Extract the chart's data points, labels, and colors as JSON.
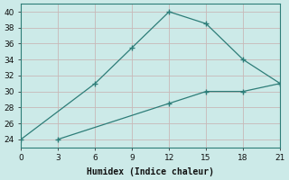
{
  "line1_x": [
    0,
    6,
    9,
    12,
    15,
    18,
    21
  ],
  "line1_y": [
    24,
    31,
    35.5,
    40,
    38.5,
    34,
    31
  ],
  "line2_x": [
    3,
    12,
    15,
    18,
    21
  ],
  "line2_y": [
    24,
    28.5,
    30,
    30,
    31
  ],
  "line_color": "#2d7d78",
  "bg_color": "#cceae8",
  "grid_color": "#c8b8b8",
  "xlabel": "Humidex (Indice chaleur)",
  "xlim": [
    0,
    21
  ],
  "ylim": [
    23,
    41
  ],
  "xticks": [
    0,
    3,
    6,
    9,
    12,
    15,
    18,
    21
  ],
  "yticks": [
    24,
    26,
    28,
    30,
    32,
    34,
    36,
    38,
    40
  ],
  "xlabel_fontsize": 7.0,
  "tick_fontsize": 6.5
}
